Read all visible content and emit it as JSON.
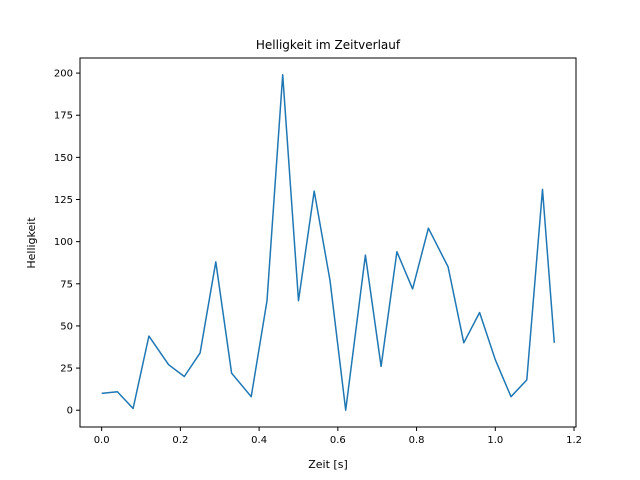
{
  "chart_data": {
    "type": "line",
    "title": "Helligkeit im Zeitverlauf",
    "xlabel": "Zeit [s]",
    "ylabel": "Helligkeit",
    "xlim": [
      -0.055,
      1.205
    ],
    "ylim": [
      -9.95,
      208.95
    ],
    "xticks": [
      0.0,
      0.2,
      0.4,
      0.6,
      0.8,
      1.0,
      1.2
    ],
    "xtick_labels": [
      "0.0",
      "0.2",
      "0.4",
      "0.6",
      "0.8",
      "1.0",
      "1.2"
    ],
    "yticks": [
      0,
      25,
      50,
      75,
      100,
      125,
      150,
      175,
      200
    ],
    "ytick_labels": [
      "0",
      "25",
      "50",
      "75",
      "100",
      "125",
      "150",
      "175",
      "200"
    ],
    "grid": false,
    "line_color": "#1f77b4",
    "series": [
      {
        "x": [
          0.0,
          0.04,
          0.08,
          0.12,
          0.17,
          0.21,
          0.25,
          0.29,
          0.33,
          0.38,
          0.42,
          0.46,
          0.5,
          0.54,
          0.58,
          0.62,
          0.67,
          0.71,
          0.75,
          0.79,
          0.83,
          0.88,
          0.92,
          0.96,
          1.0,
          1.04,
          1.08,
          1.12,
          1.15
        ],
        "y": [
          10,
          11,
          1,
          44,
          27,
          20,
          34,
          88,
          22,
          8,
          65,
          199,
          65,
          130,
          77,
          0,
          92,
          26,
          94,
          72,
          108,
          85,
          40,
          58,
          30,
          8,
          18,
          131,
          40
        ]
      }
    ]
  }
}
